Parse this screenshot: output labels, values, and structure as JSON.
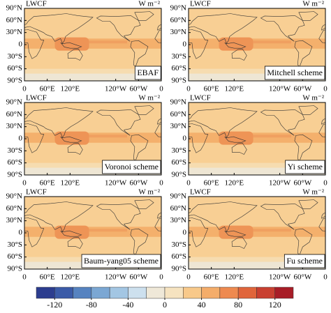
{
  "panels": [
    {
      "title": "LWCF",
      "units": "W m⁻²",
      "scheme": "EBAF"
    },
    {
      "title": "LWCF",
      "units": "W m⁻²",
      "scheme": "Mitchell scheme"
    },
    {
      "title": "LWCF",
      "units": "W m⁻²",
      "scheme": "Voronoi scheme"
    },
    {
      "title": "LWCF",
      "units": "W m⁻²",
      "scheme": "Yi scheme"
    },
    {
      "title": "LWCF",
      "units": "W m⁻²",
      "scheme": "Baum-yang05 scheme"
    },
    {
      "title": "LWCF",
      "units": "W m⁻²",
      "scheme": "Fu scheme"
    }
  ],
  "axes": {
    "xlim": [
      0,
      360
    ],
    "ylim": [
      -90,
      90
    ],
    "xticks": [
      0,
      {
        "value": 60,
        "label": "60°E"
      },
      {
        "value": 120,
        "label": "120°E"
      },
      {
        "value": 240,
        "label": "120°W"
      },
      {
        "value": 300,
        "label": "60°W"
      },
      {
        "value": 360,
        "label": "0"
      }
    ],
    "yticks": [
      {
        "value": 90,
        "label": "90°N"
      },
      {
        "value": 60,
        "label": "60°N"
      },
      {
        "value": 30,
        "label": "30°N"
      },
      0,
      {
        "value": -30,
        "label": "30°S"
      },
      {
        "value": -60,
        "label": "60°S"
      },
      {
        "value": -90,
        "label": "90°S"
      }
    ]
  },
  "colorbar": {
    "lim": [
      -140,
      140
    ],
    "levels": [
      -140,
      -120,
      -100,
      -80,
      -60,
      -40,
      -20,
      0,
      20,
      40,
      60,
      80,
      100,
      120,
      140
    ],
    "colors": [
      "#2c3d8f",
      "#3b5ba8",
      "#5683c0",
      "#7ba7d3",
      "#a3c6e3",
      "#cde0ee",
      "#efe8d8",
      "#f6e3c0",
      "#f8c98a",
      "#f4ad6a",
      "#ee8a50",
      "#e0653b",
      "#c94031",
      "#a81d27"
    ],
    "ticks": [
      -120,
      -80,
      -40,
      0,
      40,
      80,
      120
    ]
  }
}
